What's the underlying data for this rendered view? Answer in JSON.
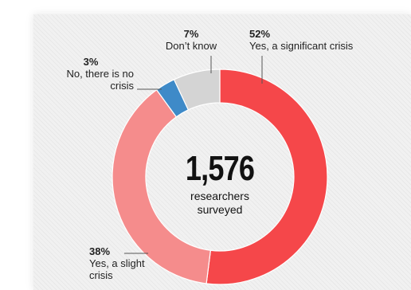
{
  "chart_data": {
    "type": "pie",
    "donut": true,
    "categories": [
      "Yes, a significant crisis",
      "Yes, a slight crisis",
      "No, there is no crisis",
      "Don't know"
    ],
    "values": [
      52,
      38,
      3,
      7
    ],
    "labels": [
      "52%",
      "38%",
      "3%",
      "7%"
    ],
    "label_lines": [
      [
        "Yes, a significant crisis"
      ],
      [
        "Yes, a slight",
        "crisis"
      ],
      [
        "No, there is no",
        "crisis"
      ],
      [
        "Don’t know"
      ]
    ],
    "colors": [
      "#f5474a",
      "#f58c8c",
      "#3e8ac8",
      "#d4d4d4"
    ],
    "center_value": "1,576",
    "center_text": [
      "researchers",
      "surveyed"
    ]
  }
}
